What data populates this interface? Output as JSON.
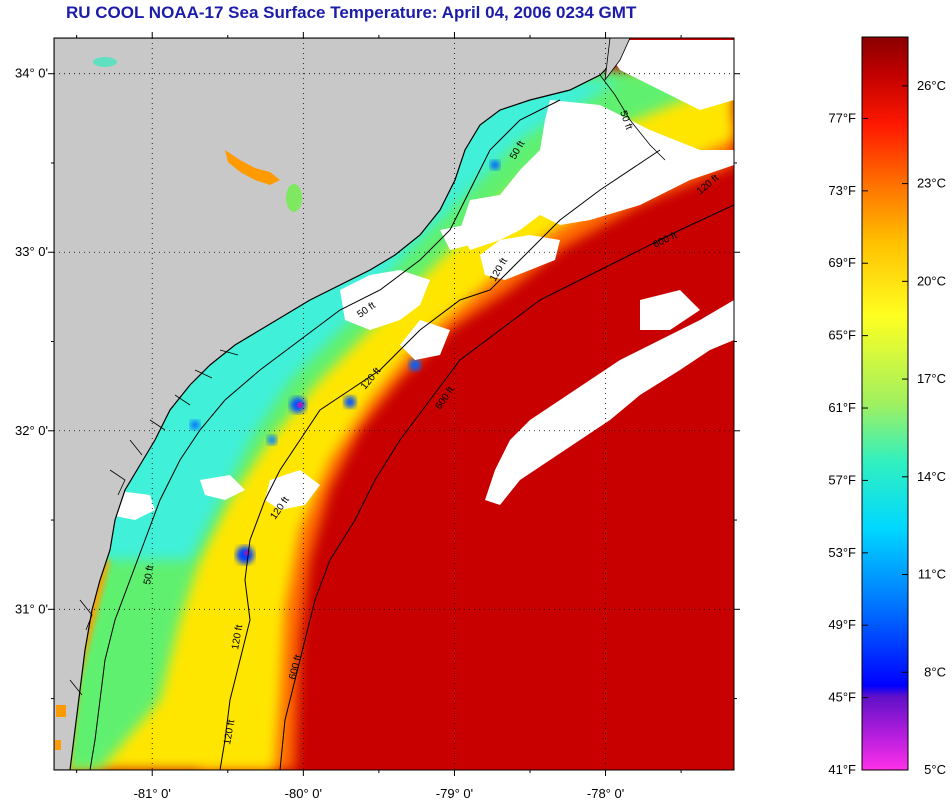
{
  "title": "RU COOL  NOAA-17  Sea Surface Temperature:  April 04, 2006 0234 GMT",
  "map": {
    "lon_ticks": [
      "-81° 0'",
      "-80° 0'",
      "-79° 0'",
      "-78° 0'"
    ],
    "lat_ticks": [
      "34° 0'",
      "33° 0'",
      "32° 0'",
      "31° 0'"
    ],
    "lon_values": [
      -81,
      -80,
      -79,
      -78
    ],
    "lat_values": [
      34,
      33,
      32,
      31
    ],
    "lon_range": [
      -81.65,
      -77.15
    ],
    "lat_range": [
      30.1,
      34.2
    ],
    "contour_labels": [
      "50 ft",
      "50 ft",
      "120 ft",
      "600 ft",
      "120 ft",
      "600 ft",
      "120 ft",
      "50 ft",
      "120 ft",
      "600 ft",
      "120 ft",
      "50 ft",
      "120 ft"
    ],
    "colors": {
      "land": "#c8c8c8",
      "cloud": "#ffffff",
      "coastline": "#000000",
      "contour": "#000000"
    }
  },
  "colorbar": {
    "fahrenheit_labels": [
      "77°F",
      "73°F",
      "69°F",
      "65°F",
      "61°F",
      "57°F",
      "53°F",
      "49°F",
      "45°F",
      "41°F"
    ],
    "fahrenheit_values": [
      77,
      73,
      69,
      65,
      61,
      57,
      53,
      49,
      45,
      41
    ],
    "celsius_labels": [
      "26°C",
      "23°C",
      "20°C",
      "17°C",
      "14°C",
      "11°C",
      "8°C",
      "5°C"
    ],
    "celsius_values": [
      26,
      23,
      20,
      17,
      14,
      11,
      8,
      5
    ],
    "range_c": [
      5,
      27.5
    ],
    "gradient": [
      "#ff30e8",
      "#8a20c8",
      "#0000ff",
      "#0070ff",
      "#00d8ff",
      "#30f0c0",
      "#a0f060",
      "#ffff20",
      "#ffc000",
      "#ff7000",
      "#ff1800",
      "#c00000",
      "#8a0000"
    ]
  }
}
